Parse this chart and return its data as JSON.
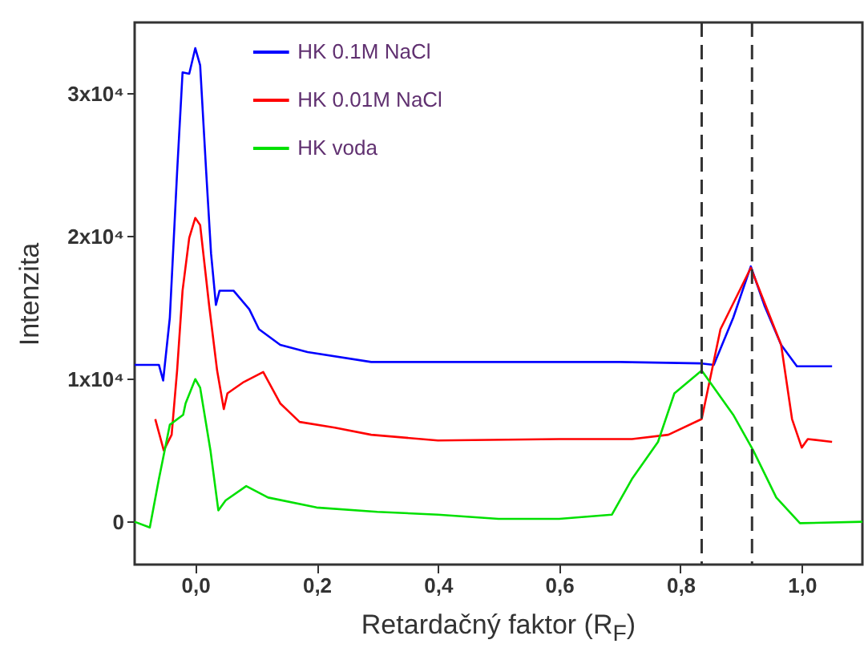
{
  "chart_data": {
    "type": "line",
    "xlabel": "Retardačný faktor (R$_{F}$)",
    "ylabel": "Intenzita",
    "xlim": [
      -0.1,
      1.1
    ],
    "xticks": [
      {
        "value": 0,
        "label": "0,0"
      },
      {
        "value": 0.2,
        "label": "0,2"
      },
      {
        "value": 0.4,
        "label": "0,4"
      },
      {
        "value": 0.6,
        "label": "0,6"
      },
      {
        "value": 0.8,
        "label": "0,8"
      },
      {
        "value": 1.0,
        "label": "1,0"
      }
    ],
    "ylim": [
      -3000,
      35000
    ],
    "yticks": [
      0,
      {
        "value": 10000,
        "label": "1x10⁴"
      },
      {
        "value": 20000,
        "label": "2x10⁴"
      },
      {
        "value": 30000,
        "label": "3x10⁴"
      }
    ],
    "grid": false,
    "legend": "top",
    "line_style": "solid",
    "series": [
      {
        "name": "HK 0.1M NaCl",
        "color": "#0000ff",
        "x": [
          -0.1,
          -0.06,
          -0.053,
          -0.042,
          -0.03,
          -0.021,
          -0.01,
          0,
          0.008,
          0.018,
          0.026,
          0.034,
          0.04,
          0.063,
          0.089,
          0.105,
          0.14,
          0.185,
          0.29,
          0.5,
          0.7,
          0.835,
          0.855,
          0.887,
          0.916,
          0.939,
          0.966,
          0.992,
          1.05
        ],
        "values": [
          11000,
          11000,
          9900,
          14300,
          24500,
          31500,
          31400,
          33200,
          32000,
          24500,
          18800,
          15200,
          16200,
          16200,
          14900,
          13500,
          12400,
          11900,
          11200,
          11200,
          11200,
          11100,
          11000,
          14300,
          17900,
          15100,
          12400,
          10900,
          10900
        ]
      },
      {
        "name": "HK 0.01M NaCl",
        "color": "#ff0000",
        "x": [
          -0.066,
          -0.052,
          -0.039,
          -0.03,
          -0.021,
          -0.01,
          0,
          0.008,
          0.023,
          0.036,
          0.047,
          0.053,
          0.08,
          0.112,
          0.14,
          0.172,
          0.23,
          0.29,
          0.4,
          0.6,
          0.72,
          0.78,
          0.835,
          0.866,
          0.916,
          0.966,
          0.984,
          1.0,
          1.01,
          1.05
        ],
        "values": [
          7200,
          5000,
          6100,
          10600,
          16200,
          19900,
          21300,
          20800,
          15100,
          10600,
          7900,
          9000,
          9800,
          10500,
          8300,
          7000,
          6600,
          6100,
          5700,
          5800,
          5800,
          6100,
          7200,
          13500,
          17800,
          12400,
          7200,
          5200,
          5800,
          5600
        ]
      },
      {
        "name": "HK voda",
        "color": "#00e000",
        "x": [
          -0.1,
          -0.075,
          -0.06,
          -0.042,
          -0.02,
          -0.016,
          0,
          0.008,
          0.025,
          0.038,
          0.05,
          0.084,
          0.12,
          0.2,
          0.3,
          0.4,
          0.5,
          0.6,
          0.687,
          0.72,
          0.763,
          0.79,
          0.835,
          0.887,
          0.92,
          0.958,
          0.997,
          1.1
        ],
        "values": [
          0,
          -400,
          3000,
          6800,
          7500,
          8300,
          10000,
          9400,
          5000,
          800,
          1500,
          2500,
          1700,
          1000,
          700,
          500,
          200,
          200,
          500,
          3000,
          5600,
          9000,
          10600,
          7500,
          5000,
          1700,
          -100,
          0
        ]
      }
    ],
    "ref_lines": [
      {
        "axis": "x",
        "value": 0.835,
        "color": "#333333",
        "line_style": "dashed"
      },
      {
        "axis": "x",
        "value": 0.918,
        "color": "#333333",
        "line_style": "dashed"
      }
    ]
  }
}
